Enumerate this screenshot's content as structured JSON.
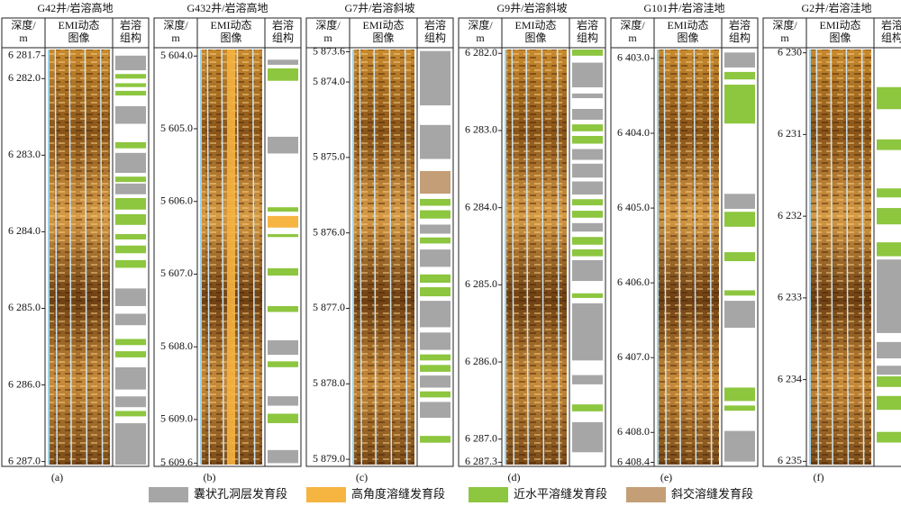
{
  "column_headers": {
    "depth": [
      "深度/",
      "m"
    ],
    "image": [
      "EMI动态",
      "图像"
    ],
    "fabric": [
      "岩溶",
      "组构"
    ]
  },
  "legend": [
    {
      "label": "囊状孔洞层发育段",
      "color": "#a6a6a6"
    },
    {
      "label": "高角度溶缝发育段",
      "color": "#f6b441"
    },
    {
      "label": "近水平溶缝发育段",
      "color": "#8dc63f"
    },
    {
      "label": "斜交溶缝发育段",
      "color": "#c49e76"
    }
  ],
  "panels": [
    {
      "title": "G42井/岩溶高地",
      "tag": "(a)",
      "depth_range": [
        6281.62,
        6287.04
      ],
      "depth_ticks": [
        {
          "value": 6281.7,
          "label": "6 281.7"
        },
        {
          "value": 6282.0,
          "label": "6 282.0"
        },
        {
          "value": 6283.0,
          "label": "6 283.0"
        },
        {
          "value": 6284.0,
          "label": "6 284.0"
        },
        {
          "value": 6285.0,
          "label": "6 285.0"
        },
        {
          "value": 6286.0,
          "label": "6 286.0"
        },
        {
          "value": 6287.0,
          "label": "6 287.0"
        }
      ],
      "intervals": [
        {
          "top": 6281.7,
          "bottom": 6281.89,
          "color": "#a6a6a6"
        },
        {
          "top": 6281.94,
          "bottom": 6282.0,
          "color": "#8dc63f"
        },
        {
          "top": 6282.06,
          "bottom": 6282.11,
          "color": "#8dc63f"
        },
        {
          "top": 6282.16,
          "bottom": 6282.22,
          "color": "#8dc63f"
        },
        {
          "top": 6282.36,
          "bottom": 6282.59,
          "color": "#a6a6a6"
        },
        {
          "top": 6282.83,
          "bottom": 6282.91,
          "color": "#8dc63f"
        },
        {
          "top": 6282.97,
          "bottom": 6283.23,
          "color": "#a6a6a6"
        },
        {
          "top": 6283.28,
          "bottom": 6283.35,
          "color": "#8dc63f"
        },
        {
          "top": 6283.37,
          "bottom": 6283.51,
          "color": "#a6a6a6"
        },
        {
          "top": 6283.56,
          "bottom": 6283.71,
          "color": "#8dc63f"
        },
        {
          "top": 6283.77,
          "bottom": 6283.91,
          "color": "#8dc63f"
        },
        {
          "top": 6284.03,
          "bottom": 6284.1,
          "color": "#8dc63f"
        },
        {
          "top": 6284.18,
          "bottom": 6284.28,
          "color": "#8dc63f"
        },
        {
          "top": 6284.37,
          "bottom": 6284.47,
          "color": "#8dc63f"
        },
        {
          "top": 6284.74,
          "bottom": 6284.97,
          "color": "#a6a6a6"
        },
        {
          "top": 6285.07,
          "bottom": 6285.22,
          "color": "#a6a6a6"
        },
        {
          "top": 6285.4,
          "bottom": 6285.48,
          "color": "#8dc63f"
        },
        {
          "top": 6285.56,
          "bottom": 6285.64,
          "color": "#8dc63f"
        },
        {
          "top": 6285.77,
          "bottom": 6286.06,
          "color": "#a6a6a6"
        },
        {
          "top": 6286.15,
          "bottom": 6286.29,
          "color": "#a6a6a6"
        },
        {
          "top": 6286.34,
          "bottom": 6286.41,
          "color": "#8dc63f"
        },
        {
          "top": 6286.5,
          "bottom": 6287.04,
          "color": "#a6a6a6"
        }
      ]
    },
    {
      "title": "G432井/岩溶高地",
      "tag": "(b)",
      "depth_range": [
        5603.91,
        5609.62
      ],
      "depth_ticks": [
        {
          "value": 5604.0,
          "label": "5 604.0"
        },
        {
          "value": 5605.0,
          "label": "5 605.0"
        },
        {
          "value": 5606.0,
          "label": "5 606.0"
        },
        {
          "value": 5607.0,
          "label": "5 607.0"
        },
        {
          "value": 5608.0,
          "label": "5 608.0"
        },
        {
          "value": 5609.0,
          "label": "5 609.0"
        },
        {
          "value": 5609.6,
          "label": "5 609.6"
        }
      ],
      "intervals": [
        {
          "top": 5604.05,
          "bottom": 5604.12,
          "color": "#a6a6a6"
        },
        {
          "top": 5604.17,
          "bottom": 5604.34,
          "color": "#8dc63f"
        },
        {
          "top": 5605.11,
          "bottom": 5605.34,
          "color": "#a6a6a6"
        },
        {
          "top": 5606.08,
          "bottom": 5606.14,
          "color": "#8dc63f"
        },
        {
          "top": 5606.2,
          "bottom": 5606.36,
          "color": "#f6b441"
        },
        {
          "top": 5606.45,
          "bottom": 5606.49,
          "color": "#8dc63f"
        },
        {
          "top": 5606.92,
          "bottom": 5607.02,
          "color": "#8dc63f"
        },
        {
          "top": 5607.44,
          "bottom": 5607.52,
          "color": "#8dc63f"
        },
        {
          "top": 5607.91,
          "bottom": 5608.11,
          "color": "#a6a6a6"
        },
        {
          "top": 5608.2,
          "bottom": 5608.28,
          "color": "#8dc63f"
        },
        {
          "top": 5608.68,
          "bottom": 5608.81,
          "color": "#a6a6a6"
        },
        {
          "top": 5608.92,
          "bottom": 5609.05,
          "color": "#8dc63f"
        },
        {
          "top": 5609.42,
          "bottom": 5609.6,
          "color": "#a6a6a6"
        }
      ]
    },
    {
      "title": "G7井/岩溶斜坡",
      "tag": "(c)",
      "depth_range": [
        5873.57,
        5879.07
      ],
      "depth_ticks": [
        {
          "value": 5873.6,
          "label": "5 873.6"
        },
        {
          "value": 5874.0,
          "label": "5 874.0"
        },
        {
          "value": 5875.0,
          "label": "5 875.0"
        },
        {
          "value": 5876.0,
          "label": "5 876.0"
        },
        {
          "value": 5877.0,
          "label": "5 877.0"
        },
        {
          "value": 5878.0,
          "label": "5 878.0"
        },
        {
          "value": 5879.0,
          "label": "5 879.0"
        }
      ],
      "intervals": [
        {
          "top": 5873.59,
          "bottom": 5874.31,
          "color": "#a6a6a6"
        },
        {
          "top": 5874.57,
          "bottom": 5875.02,
          "color": "#a6a6a6"
        },
        {
          "top": 5875.18,
          "bottom": 5875.48,
          "color": "#c49e76"
        },
        {
          "top": 5875.55,
          "bottom": 5875.64,
          "color": "#8dc63f"
        },
        {
          "top": 5875.7,
          "bottom": 5875.81,
          "color": "#8dc63f"
        },
        {
          "top": 5875.89,
          "bottom": 5876.01,
          "color": "#a6a6a6"
        },
        {
          "top": 5876.06,
          "bottom": 5876.14,
          "color": "#8dc63f"
        },
        {
          "top": 5876.22,
          "bottom": 5876.45,
          "color": "#a6a6a6"
        },
        {
          "top": 5876.55,
          "bottom": 5876.66,
          "color": "#8dc63f"
        },
        {
          "top": 5876.72,
          "bottom": 5876.84,
          "color": "#8dc63f"
        },
        {
          "top": 5876.9,
          "bottom": 5877.25,
          "color": "#a6a6a6"
        },
        {
          "top": 5877.32,
          "bottom": 5877.55,
          "color": "#a6a6a6"
        },
        {
          "top": 5877.61,
          "bottom": 5877.69,
          "color": "#8dc63f"
        },
        {
          "top": 5877.75,
          "bottom": 5877.84,
          "color": "#8dc63f"
        },
        {
          "top": 5877.89,
          "bottom": 5878.05,
          "color": "#a6a6a6"
        },
        {
          "top": 5878.1,
          "bottom": 5878.18,
          "color": "#8dc63f"
        },
        {
          "top": 5878.24,
          "bottom": 5878.45,
          "color": "#a6a6a6"
        },
        {
          "top": 5878.69,
          "bottom": 5878.78,
          "color": "#8dc63f"
        }
      ]
    },
    {
      "title": "G9井/岩溶斜坡",
      "tag": "(d)",
      "depth_range": [
        6281.95,
        6287.33
      ],
      "depth_ticks": [
        {
          "value": 6282.0,
          "label": "6 282.0"
        },
        {
          "value": 6283.0,
          "label": "6 283.0"
        },
        {
          "value": 6284.0,
          "label": "6 284.0"
        },
        {
          "value": 6285.0,
          "label": "6 285.0"
        },
        {
          "value": 6286.0,
          "label": "6 286.0"
        },
        {
          "value": 6287.0,
          "label": "6 287.0"
        },
        {
          "value": 6287.3,
          "label": "6 287.3"
        }
      ],
      "intervals": [
        {
          "top": 6281.95,
          "bottom": 6282.03,
          "color": "#8dc63f"
        },
        {
          "top": 6282.12,
          "bottom": 6282.44,
          "color": "#a6a6a6"
        },
        {
          "top": 6282.52,
          "bottom": 6282.58,
          "color": "#a6a6a6"
        },
        {
          "top": 6282.72,
          "bottom": 6282.86,
          "color": "#a6a6a6"
        },
        {
          "top": 6282.92,
          "bottom": 6283.01,
          "color": "#8dc63f"
        },
        {
          "top": 6283.07,
          "bottom": 6283.17,
          "color": "#8dc63f"
        },
        {
          "top": 6283.24,
          "bottom": 6283.38,
          "color": "#a6a6a6"
        },
        {
          "top": 6283.43,
          "bottom": 6283.61,
          "color": "#a6a6a6"
        },
        {
          "top": 6283.66,
          "bottom": 6283.83,
          "color": "#a6a6a6"
        },
        {
          "top": 6283.89,
          "bottom": 6283.97,
          "color": "#8dc63f"
        },
        {
          "top": 6284.04,
          "bottom": 6284.13,
          "color": "#8dc63f"
        },
        {
          "top": 6284.2,
          "bottom": 6284.31,
          "color": "#a6a6a6"
        },
        {
          "top": 6284.38,
          "bottom": 6284.48,
          "color": "#8dc63f"
        },
        {
          "top": 6284.54,
          "bottom": 6284.63,
          "color": "#8dc63f"
        },
        {
          "top": 6284.68,
          "bottom": 6284.95,
          "color": "#a6a6a6"
        },
        {
          "top": 6285.11,
          "bottom": 6285.17,
          "color": "#8dc63f"
        },
        {
          "top": 6285.24,
          "bottom": 6285.98,
          "color": "#a6a6a6"
        },
        {
          "top": 6286.17,
          "bottom": 6286.29,
          "color": "#a6a6a6"
        },
        {
          "top": 6286.55,
          "bottom": 6286.64,
          "color": "#8dc63f"
        },
        {
          "top": 6286.78,
          "bottom": 6287.17,
          "color": "#a6a6a6"
        }
      ]
    },
    {
      "title": "G101井/岩溶洼地",
      "tag": "(e)",
      "depth_range": [
        6402.88,
        6408.43
      ],
      "depth_ticks": [
        {
          "value": 6403.0,
          "label": "6 403.0"
        },
        {
          "value": 6404.0,
          "label": "6 404.0"
        },
        {
          "value": 6405.0,
          "label": "6 405.0"
        },
        {
          "value": 6406.0,
          "label": "6 406.0"
        },
        {
          "value": 6407.0,
          "label": "6 407.0"
        },
        {
          "value": 6408.0,
          "label": "6 408.0"
        },
        {
          "value": 6408.4,
          "label": "6 408.4"
        }
      ],
      "intervals": [
        {
          "top": 6402.92,
          "bottom": 6403.12,
          "color": "#a6a6a6"
        },
        {
          "top": 6403.18,
          "bottom": 6403.28,
          "color": "#8dc63f"
        },
        {
          "top": 6403.35,
          "bottom": 6403.87,
          "color": "#8dc63f"
        },
        {
          "top": 6404.81,
          "bottom": 6405.01,
          "color": "#a6a6a6"
        },
        {
          "top": 6405.05,
          "bottom": 6405.25,
          "color": "#8dc63f"
        },
        {
          "top": 6405.59,
          "bottom": 6405.71,
          "color": "#8dc63f"
        },
        {
          "top": 6406.1,
          "bottom": 6406.17,
          "color": "#8dc63f"
        },
        {
          "top": 6406.24,
          "bottom": 6406.6,
          "color": "#a6a6a6"
        },
        {
          "top": 6407.4,
          "bottom": 6407.58,
          "color": "#8dc63f"
        },
        {
          "top": 6407.64,
          "bottom": 6407.71,
          "color": "#8dc63f"
        },
        {
          "top": 6407.98,
          "bottom": 6408.39,
          "color": "#a6a6a6"
        }
      ]
    },
    {
      "title": "G2井/岩溶洼地",
      "tag": "(f)",
      "depth_range": [
        6229.96,
        6235.04
      ],
      "depth_ticks": [
        {
          "value": 6230,
          "label": "6 230"
        },
        {
          "value": 6231,
          "label": "6 231"
        },
        {
          "value": 6232,
          "label": "6 232"
        },
        {
          "value": 6233,
          "label": "6 233"
        },
        {
          "value": 6234,
          "label": "6 234"
        },
        {
          "value": 6235,
          "label": "6 235"
        }
      ],
      "intervals": [
        {
          "top": 6230.42,
          "bottom": 6230.69,
          "color": "#8dc63f"
        },
        {
          "top": 6231.06,
          "bottom": 6231.19,
          "color": "#8dc63f"
        },
        {
          "top": 6231.66,
          "bottom": 6231.77,
          "color": "#8dc63f"
        },
        {
          "top": 6231.9,
          "bottom": 6232.1,
          "color": "#8dc63f"
        },
        {
          "top": 6232.32,
          "bottom": 6232.49,
          "color": "#8dc63f"
        },
        {
          "top": 6232.53,
          "bottom": 6233.43,
          "color": "#a6a6a6"
        },
        {
          "top": 6233.54,
          "bottom": 6233.74,
          "color": "#a6a6a6"
        },
        {
          "top": 6233.83,
          "bottom": 6233.94,
          "color": "#a6a6a6"
        },
        {
          "top": 6233.96,
          "bottom": 6234.09,
          "color": "#8dc63f"
        },
        {
          "top": 6234.2,
          "bottom": 6234.37,
          "color": "#8dc63f"
        },
        {
          "top": 6234.64,
          "bottom": 6234.77,
          "color": "#8dc63f"
        }
      ]
    }
  ]
}
